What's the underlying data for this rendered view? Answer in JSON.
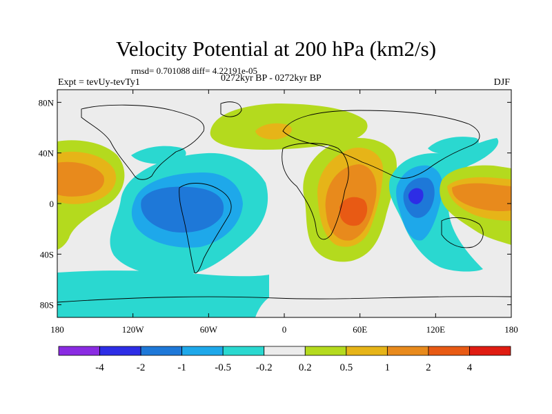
{
  "header": {
    "title": "Velocity Potential at 200 hPa (km2/s)",
    "stats": "rmsd= 0.701088 diff= 4.22191e-05",
    "expt": "Expt = tevUy-tevTy1",
    "period": "0272kyr BP - 0272kyr BP",
    "season": "DJF"
  },
  "map": {
    "lat_ticks": [
      {
        "label": "80N",
        "lat": 80
      },
      {
        "label": "40N",
        "lat": 40
      },
      {
        "label": "0",
        "lat": 0
      },
      {
        "label": "40S",
        "lat": -40
      },
      {
        "label": "80S",
        "lat": -80
      }
    ],
    "lon_ticks": [
      {
        "label": "180",
        "lon": -180
      },
      {
        "label": "120W",
        "lon": -120
      },
      {
        "label": "60W",
        "lon": -60
      },
      {
        "label": "0",
        "lon": 0
      },
      {
        "label": "60E",
        "lon": 60
      },
      {
        "label": "120E",
        "lon": 120
      },
      {
        "label": "180",
        "lon": 180
      }
    ]
  },
  "colorbar": {
    "colors": [
      "#8a2be2",
      "#2d2de6",
      "#1e78d8",
      "#1ea8ea",
      "#2ad8d0",
      "#ececec",
      "#b4da1e",
      "#e6b418",
      "#e88a1c",
      "#e85a14",
      "#e01c12"
    ],
    "labels": [
      "-4",
      "-2",
      "-1",
      "-0.5",
      "-0.2",
      "0.2",
      "0.5",
      "1",
      "2",
      "4"
    ]
  }
}
